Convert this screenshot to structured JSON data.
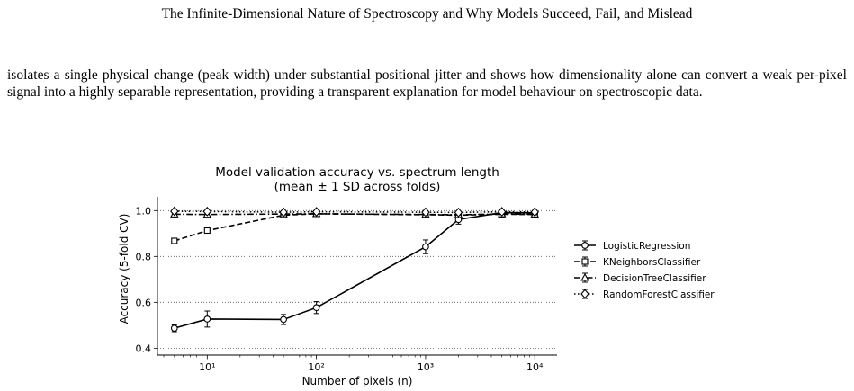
{
  "page": {
    "running_head": "The Infinite-Dimensional Nature of Spectroscopy and Why Models Succeed, Fail, and Mislead",
    "paragraph": "isolates a single physical change (peak width) under substantial positional jitter and shows how dimensionality alone can convert a weak per-pixel signal into a highly separable representation, providing a transparent explanation for model behaviour on spectroscopic data."
  },
  "chart_data": {
    "type": "line",
    "title": "Model validation accuracy vs. spectrum length",
    "subtitle": "(mean ± 1 SD across folds)",
    "xlabel": "Number of pixels (n)",
    "ylabel": "Accuracy (5-fold CV)",
    "x_scale": "log",
    "xlim": [
      3.5,
      16000
    ],
    "ylim": [
      0.37,
      1.06
    ],
    "x_ticks": [
      10,
      100,
      1000,
      10000
    ],
    "x_tick_labels": [
      "10¹",
      "10²",
      "10³",
      "10⁴"
    ],
    "y_ticks": [
      0.4,
      0.6,
      0.8,
      1.0
    ],
    "y_tick_labels": [
      "0.4",
      "0.6",
      "0.8",
      "1.0"
    ],
    "grid": "horizontal dotted",
    "legend_position": "right",
    "x": [
      5,
      10,
      50,
      100,
      1000,
      2000,
      5000,
      10000
    ],
    "series": [
      {
        "name": "LogisticRegression",
        "line_style": "solid",
        "marker": "circle",
        "values": [
          0.487,
          0.527,
          0.525,
          0.577,
          0.842,
          0.961,
          0.991,
          0.99
        ],
        "sd": [
          0.015,
          0.035,
          0.022,
          0.026,
          0.03,
          0.02,
          0.01,
          0.01
        ]
      },
      {
        "name": "KNeighborsClassifier",
        "line_style": "dashed",
        "marker": "square",
        "values": [
          0.868,
          0.913,
          0.98,
          0.986,
          0.982,
          0.98,
          0.984,
          0.983
        ],
        "sd": [
          0.01,
          0.01,
          0.006,
          0.006,
          0.006,
          0.006,
          0.006,
          0.006
        ]
      },
      {
        "name": "DecisionTreeClassifier",
        "line_style": "dashdot",
        "marker": "triangle",
        "values": [
          0.984,
          0.983,
          0.985,
          0.986,
          0.983,
          0.982,
          0.985,
          0.984
        ],
        "sd": [
          0.005,
          0.005,
          0.005,
          0.005,
          0.005,
          0.005,
          0.005,
          0.005
        ]
      },
      {
        "name": "RandomForestClassifier",
        "line_style": "dotted",
        "marker": "diamond",
        "values": [
          0.997,
          0.996,
          0.993,
          0.995,
          0.993,
          0.992,
          0.995,
          0.994
        ],
        "sd": [
          0.003,
          0.003,
          0.003,
          0.003,
          0.003,
          0.003,
          0.003,
          0.003
        ]
      }
    ]
  }
}
